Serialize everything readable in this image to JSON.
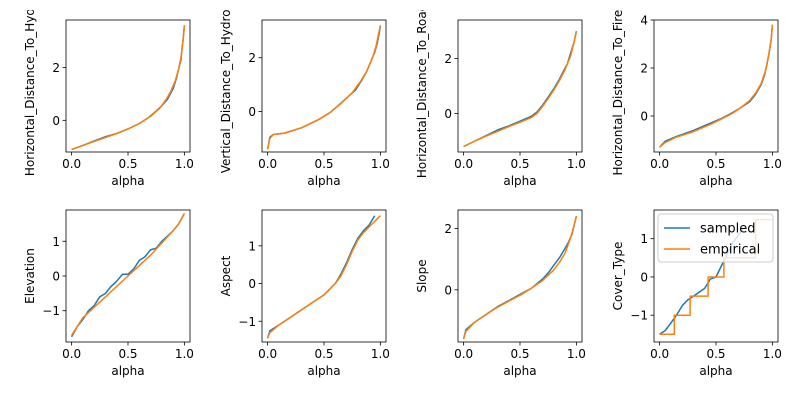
{
  "colors": {
    "sampled": "#1f77b4",
    "empirical": "#ff7f0e"
  },
  "legend": {
    "placement": "upper-left",
    "panel": 7,
    "entries": [
      "sampled",
      "empirical"
    ]
  },
  "chart_data": [
    {
      "type": "line",
      "xlabel": "alpha",
      "ylabel": "Horizontal_Distance_To_Hydrology",
      "ylabel_shown": "Horizontal_Distance_To_Hydro",
      "xlim": [
        -0.05,
        1.05
      ],
      "ylim": [
        -1.2,
        3.8
      ],
      "xticks": [
        0.0,
        0.5,
        1.0
      ],
      "xtick_labels": [
        "0.0",
        "0.5",
        "1.0"
      ],
      "yticks": [
        0,
        2
      ],
      "ytick_labels": [
        "0",
        "2"
      ],
      "series": [
        {
          "name": "sampled",
          "x": [
            0.0,
            0.1,
            0.2,
            0.3,
            0.4,
            0.5,
            0.6,
            0.68,
            0.75,
            0.8,
            0.85,
            0.9,
            0.93,
            0.95,
            0.97,
            0.98,
            0.99,
            1.0
          ],
          "y": [
            -1.1,
            -0.95,
            -0.78,
            -0.62,
            -0.5,
            -0.33,
            -0.12,
            0.1,
            0.35,
            0.55,
            0.8,
            1.2,
            1.6,
            1.95,
            2.3,
            2.75,
            3.1,
            3.6
          ]
        },
        {
          "name": "empirical",
          "x": [
            0.0,
            0.1,
            0.2,
            0.3,
            0.4,
            0.5,
            0.6,
            0.7,
            0.78,
            0.84,
            0.88,
            0.92,
            0.95,
            0.97,
            0.985,
            1.0
          ],
          "y": [
            -1.1,
            -0.95,
            -0.8,
            -0.65,
            -0.5,
            -0.33,
            -0.12,
            0.15,
            0.45,
            0.8,
            1.1,
            1.5,
            1.95,
            2.4,
            2.9,
            3.6
          ]
        }
      ]
    },
    {
      "type": "line",
      "xlabel": "alpha",
      "ylabel": "Vertical_Distance_To_Hydrology",
      "ylabel_shown": "Vertical_Distance_To_Hydrolo",
      "xlim": [
        -0.05,
        1.05
      ],
      "ylim": [
        -1.5,
        3.4
      ],
      "xticks": [
        0.0,
        0.5,
        1.0
      ],
      "xtick_labels": [
        "0.0",
        "0.5",
        "1.0"
      ],
      "yticks": [
        0,
        2
      ],
      "ytick_labels": [
        "0",
        "2"
      ],
      "series": [
        {
          "name": "sampled",
          "x": [
            0.0,
            0.02,
            0.05,
            0.15,
            0.3,
            0.45,
            0.55,
            0.62,
            0.7,
            0.78,
            0.84,
            0.88,
            0.92,
            0.95,
            0.97,
            0.99,
            1.0
          ],
          "y": [
            -1.4,
            -0.95,
            -0.85,
            -0.8,
            -0.6,
            -0.3,
            -0.05,
            0.2,
            0.5,
            0.8,
            1.2,
            1.5,
            1.9,
            2.2,
            2.5,
            2.9,
            3.2
          ]
        },
        {
          "name": "empirical",
          "x": [
            0.0,
            0.02,
            0.05,
            0.15,
            0.3,
            0.45,
            0.55,
            0.65,
            0.75,
            0.82,
            0.88,
            0.93,
            0.96,
            0.98,
            1.0
          ],
          "y": [
            -1.4,
            -1.0,
            -0.85,
            -0.8,
            -0.6,
            -0.3,
            -0.05,
            0.3,
            0.7,
            1.1,
            1.5,
            2.0,
            2.4,
            2.8,
            3.2
          ]
        }
      ]
    },
    {
      "type": "line",
      "xlabel": "alpha",
      "ylabel": "Horizontal_Distance_To_Roadways",
      "ylabel_shown": "Horizontal_Distance_To_Roadw",
      "xlim": [
        -0.05,
        1.05
      ],
      "ylim": [
        -1.4,
        3.4
      ],
      "xticks": [
        0.0,
        0.5,
        1.0
      ],
      "xtick_labels": [
        "0.0",
        "0.5",
        "1.0"
      ],
      "yticks": [
        0,
        2
      ],
      "ytick_labels": [
        "0",
        "2"
      ],
      "series": [
        {
          "name": "sampled",
          "x": [
            0.0,
            0.1,
            0.2,
            0.3,
            0.4,
            0.5,
            0.6,
            0.65,
            0.7,
            0.75,
            0.8,
            0.85,
            0.88,
            0.92,
            0.95,
            0.98,
            1.0
          ],
          "y": [
            -1.2,
            -1.0,
            -0.8,
            -0.6,
            -0.45,
            -0.28,
            -0.1,
            0.05,
            0.3,
            0.6,
            0.9,
            1.25,
            1.5,
            1.8,
            2.2,
            2.6,
            3.0
          ]
        },
        {
          "name": "empirical",
          "x": [
            0.0,
            0.1,
            0.2,
            0.3,
            0.4,
            0.5,
            0.6,
            0.65,
            0.7,
            0.75,
            0.8,
            0.85,
            0.9,
            0.95,
            0.98,
            1.0
          ],
          "y": [
            -1.2,
            -1.0,
            -0.82,
            -0.65,
            -0.48,
            -0.32,
            -0.15,
            0.0,
            0.25,
            0.55,
            0.85,
            1.2,
            1.6,
            2.1,
            2.6,
            3.0
          ]
        }
      ]
    },
    {
      "type": "line",
      "xlabel": "alpha",
      "ylabel": "Horizontal_Distance_To_Fire_Points",
      "ylabel_shown": "Horizontal_Distance_To_Fire_P",
      "xlim": [
        -0.05,
        1.05
      ],
      "ylim": [
        -1.5,
        4.0
      ],
      "xticks": [
        0.0,
        0.5,
        1.0
      ],
      "xtick_labels": [
        "0.0",
        "0.5",
        "1.0"
      ],
      "yticks": [
        0,
        2,
        4
      ],
      "ytick_labels": [
        "0",
        "2",
        "4"
      ],
      "series": [
        {
          "name": "sampled",
          "x": [
            0.0,
            0.05,
            0.15,
            0.3,
            0.45,
            0.55,
            0.65,
            0.72,
            0.8,
            0.85,
            0.9,
            0.93,
            0.95,
            0.97,
            0.99,
            1.0
          ],
          "y": [
            -1.3,
            -1.05,
            -0.85,
            -0.6,
            -0.3,
            -0.1,
            0.15,
            0.35,
            0.6,
            0.9,
            1.3,
            1.7,
            2.1,
            2.6,
            3.2,
            3.8
          ]
        },
        {
          "name": "empirical",
          "x": [
            0.0,
            0.05,
            0.15,
            0.3,
            0.45,
            0.55,
            0.65,
            0.72,
            0.8,
            0.85,
            0.9,
            0.94,
            0.97,
            0.99,
            1.0
          ],
          "y": [
            -1.3,
            -1.1,
            -0.88,
            -0.65,
            -0.35,
            -0.12,
            0.12,
            0.35,
            0.65,
            0.95,
            1.35,
            1.9,
            2.6,
            3.2,
            3.8
          ]
        }
      ]
    },
    {
      "type": "line",
      "xlabel": "alpha",
      "ylabel": "Elevation",
      "xlim": [
        -0.05,
        1.05
      ],
      "ylim": [
        -1.9,
        1.9
      ],
      "xticks": [
        0.0,
        0.5,
        1.0
      ],
      "xtick_labels": [
        "0.0",
        "0.5",
        "1.0"
      ],
      "yticks": [
        -1,
        0,
        1
      ],
      "ytick_labels": [
        "−1",
        "0",
        "1"
      ],
      "series": [
        {
          "name": "sampled",
          "x": [
            0.0,
            0.05,
            0.1,
            0.15,
            0.2,
            0.25,
            0.3,
            0.35,
            0.4,
            0.45,
            0.5,
            0.55,
            0.6,
            0.65,
            0.7,
            0.75,
            0.8,
            0.85,
            0.9,
            0.95,
            1.0
          ],
          "y": [
            -1.75,
            -1.45,
            -1.25,
            -1.0,
            -0.85,
            -0.6,
            -0.5,
            -0.3,
            -0.15,
            0.05,
            0.05,
            0.2,
            0.45,
            0.55,
            0.75,
            0.8,
            1.0,
            1.15,
            1.3,
            1.5,
            1.8
          ]
        },
        {
          "name": "empirical",
          "x": [
            0.0,
            0.05,
            0.1,
            0.2,
            0.3,
            0.4,
            0.5,
            0.6,
            0.7,
            0.8,
            0.9,
            0.95,
            1.0
          ],
          "y": [
            -1.7,
            -1.45,
            -1.2,
            -0.9,
            -0.6,
            -0.3,
            0.0,
            0.3,
            0.6,
            0.95,
            1.3,
            1.5,
            1.8
          ]
        }
      ]
    },
    {
      "type": "line",
      "xlabel": "alpha",
      "ylabel": "Aspect",
      "xlim": [
        -0.05,
        1.05
      ],
      "ylim": [
        -1.55,
        1.95
      ],
      "xticks": [
        0.0,
        0.5,
        1.0
      ],
      "xtick_labels": [
        "0.0",
        "0.5",
        "1.0"
      ],
      "yticks": [
        -1,
        0,
        1
      ],
      "ytick_labels": [
        "−1",
        "0",
        "1"
      ],
      "series": [
        {
          "name": "sampled",
          "x": [
            0.0,
            0.02,
            0.1,
            0.2,
            0.3,
            0.4,
            0.5,
            0.55,
            0.6,
            0.65,
            0.7,
            0.75,
            0.8,
            0.85,
            0.9,
            0.95
          ],
          "y": [
            -1.45,
            -1.25,
            -1.1,
            -0.9,
            -0.7,
            -0.5,
            -0.3,
            -0.15,
            0.0,
            0.25,
            0.55,
            0.9,
            1.2,
            1.4,
            1.55,
            1.8
          ]
        },
        {
          "name": "empirical",
          "x": [
            0.0,
            0.02,
            0.1,
            0.2,
            0.3,
            0.4,
            0.5,
            0.55,
            0.6,
            0.65,
            0.7,
            0.75,
            0.8,
            0.85,
            0.9,
            0.95,
            1.0
          ],
          "y": [
            -1.45,
            -1.3,
            -1.1,
            -0.9,
            -0.7,
            -0.5,
            -0.3,
            -0.15,
            0.0,
            0.2,
            0.5,
            0.85,
            1.15,
            1.35,
            1.5,
            1.65,
            1.8
          ]
        }
      ]
    },
    {
      "type": "line",
      "xlabel": "alpha",
      "ylabel": "Slope",
      "xlim": [
        -0.05,
        1.05
      ],
      "ylim": [
        -1.7,
        2.6
      ],
      "xticks": [
        0.0,
        0.5,
        1.0
      ],
      "xtick_labels": [
        "0.0",
        "0.5",
        "1.0"
      ],
      "yticks": [
        0,
        2
      ],
      "ytick_labels": [
        "0",
        "2"
      ],
      "series": [
        {
          "name": "sampled",
          "x": [
            0.0,
            0.02,
            0.1,
            0.2,
            0.3,
            0.4,
            0.5,
            0.6,
            0.7,
            0.75,
            0.8,
            0.85,
            0.9,
            0.93,
            0.96,
            0.98,
            1.0
          ],
          "y": [
            -1.6,
            -1.3,
            -1.05,
            -0.8,
            -0.55,
            -0.35,
            -0.15,
            0.05,
            0.35,
            0.55,
            0.8,
            1.05,
            1.35,
            1.55,
            1.8,
            2.1,
            2.4
          ]
        },
        {
          "name": "empirical",
          "x": [
            0.0,
            0.02,
            0.1,
            0.2,
            0.3,
            0.4,
            0.5,
            0.6,
            0.7,
            0.8,
            0.85,
            0.9,
            0.95,
            0.98,
            1.0
          ],
          "y": [
            -1.6,
            -1.35,
            -1.05,
            -0.8,
            -0.57,
            -0.37,
            -0.18,
            0.05,
            0.3,
            0.65,
            0.9,
            1.2,
            1.7,
            2.1,
            2.4
          ]
        }
      ]
    },
    {
      "type": "line",
      "xlabel": "alpha",
      "ylabel": "Cover_Type",
      "xlim": [
        -0.05,
        1.05
      ],
      "ylim": [
        -1.7,
        1.75
      ],
      "xticks": [
        0.0,
        0.5,
        1.0
      ],
      "xtick_labels": [
        "0.0",
        "0.5",
        "1.0"
      ],
      "yticks": [
        -1,
        0,
        1
      ],
      "ytick_labels": [
        "−1",
        "0",
        "1"
      ],
      "series": [
        {
          "name": "sampled",
          "x": [
            0.0,
            0.05,
            0.1,
            0.15,
            0.2,
            0.25,
            0.3,
            0.35,
            0.4,
            0.45,
            0.5,
            0.55,
            0.6,
            0.65,
            0.7,
            0.75
          ],
          "y": [
            -1.5,
            -1.4,
            -1.2,
            -1.0,
            -0.75,
            -0.6,
            -0.5,
            -0.4,
            -0.3,
            -0.05,
            0.0,
            0.3,
            0.6,
            0.9,
            1.1,
            1.3
          ]
        },
        {
          "name": "empirical",
          "x": [
            0.0,
            0.13,
            0.13,
            0.27,
            0.27,
            0.43,
            0.43,
            0.57,
            0.57,
            0.85,
            0.85,
            1.0
          ],
          "y": [
            -1.5,
            -1.5,
            -1.0,
            -1.0,
            -0.5,
            -0.5,
            0.0,
            0.0,
            0.5,
            0.5,
            1.5,
            1.5
          ]
        }
      ]
    }
  ]
}
